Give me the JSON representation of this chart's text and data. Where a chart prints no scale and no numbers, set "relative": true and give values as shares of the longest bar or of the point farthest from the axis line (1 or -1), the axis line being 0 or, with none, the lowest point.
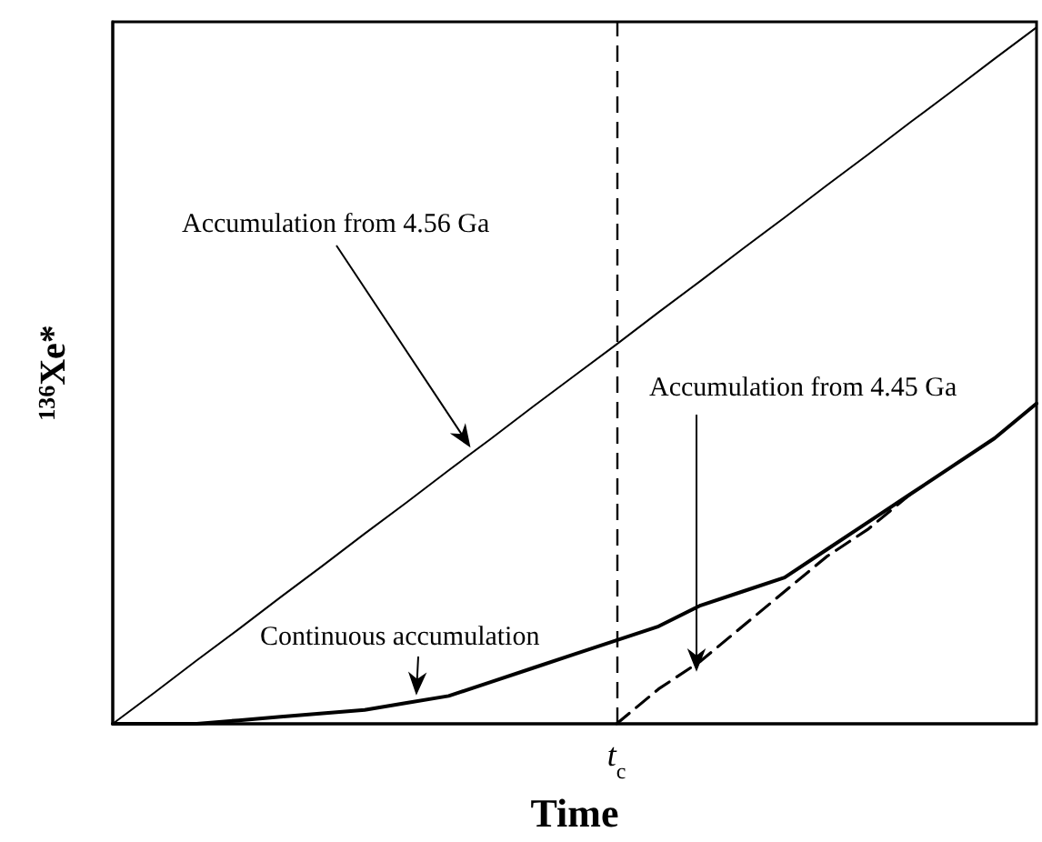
{
  "chart_data": {
    "type": "line",
    "xlabel": "Time",
    "ylabel": "$^{136}$Xe*",
    "relative": true,
    "grid": false,
    "marker": "none",
    "categories": [
      null,
      null,
      null,
      null,
      null,
      null,
      null,
      null,
      null,
      null,
      null,
      null,
      null,
      null,
      null,
      null,
      null,
      null,
      null,
      null,
      null,
      null,
      null
    ],
    "series": [
      {
        "color": "#000000",
        "line_style": "solid",
        "values": [
          0,
          0.045,
          0.091,
          0.136,
          0.182,
          0.227,
          0.273,
          0.318,
          0.364,
          0.409,
          0.455,
          0.5,
          0.545,
          0.591,
          0.636,
          0.682,
          0.727,
          0.773,
          0.818,
          0.864,
          0.909,
          0.955,
          1
        ]
      },
      {
        "color": "#000000",
        "line_style": "solid",
        "values": [
          0,
          0,
          0,
          0.005,
          0.01,
          0.015,
          0.02,
          0.03,
          0.04,
          0.06,
          0.08,
          0.1,
          0.12,
          0.14,
          0.17,
          0.19,
          0.21,
          0.25,
          0.29,
          0.33,
          0.37,
          0.41,
          0.46
        ]
      },
      {
        "color": "#000000",
        "line_style": "dashed",
        "values": [
          null,
          null,
          null,
          null,
          null,
          null,
          null,
          null,
          null,
          null,
          null,
          null,
          0,
          0.05,
          0.09,
          0.14,
          0.19,
          0.24,
          0.28,
          0.33,
          null,
          null,
          null
        ]
      }
    ],
    "annotations": [
      "Accumulation from 4.56 Ga",
      "Continuous accumulation",
      "Accumulation from 4.45 Ga",
      "t$_{c}$"
    ]
  }
}
